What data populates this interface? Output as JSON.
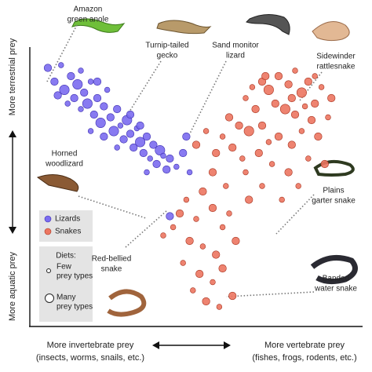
{
  "chart_data": {
    "type": "scatter",
    "xlim": [
      0,
      100
    ],
    "ylim": [
      0,
      100
    ],
    "y_label_top": "More  terrestrial prey",
    "y_label_bottom": "More  aquatic prey",
    "x_label_left": [
      "More invertebrate prey",
      "(insects, worms, snails, etc.)"
    ],
    "x_label_right": [
      "More vertebrate prey",
      "(fishes, frogs, rodents, etc.)"
    ],
    "diets": {
      "title": "Diets:",
      "few": [
        "Few",
        "prey types"
      ],
      "many": [
        "Many",
        "prey types"
      ]
    },
    "annotations": [
      {
        "lines": [
          "Amazon",
          "green anole"
        ]
      },
      {
        "lines": [
          "Turnip-tailed",
          "gecko"
        ]
      },
      {
        "lines": [
          "Sand monitor",
          "lizard"
        ]
      },
      {
        "lines": [
          "Sidewinder",
          "rattlesnake"
        ]
      },
      {
        "lines": [
          "Horned",
          "woodlizard"
        ]
      },
      {
        "lines": [
          "Plains",
          "garter snake"
        ]
      },
      {
        "lines": [
          "Red-bellied",
          "snake"
        ]
      },
      {
        "lines": [
          "Banded",
          "water snake"
        ]
      }
    ],
    "series": [
      {
        "name": "Lizards",
        "color": "#7b6cf0",
        "stroke": "#3d2fb0",
        "x": [
          5,
          7,
          9,
          10,
          12,
          13,
          14,
          15,
          16,
          17,
          18,
          19,
          20,
          21,
          22,
          23,
          24,
          25,
          26,
          27,
          28,
          29,
          30,
          31,
          32,
          33,
          34,
          35,
          36,
          37,
          38,
          39,
          40,
          41,
          42,
          44,
          46,
          48,
          11,
          8,
          20,
          26,
          30,
          35,
          42,
          47,
          15,
          22,
          33,
          18
        ],
        "values": [
          93,
          88,
          94,
          85,
          90,
          82,
          87,
          78,
          84,
          80,
          88,
          76,
          82,
          73,
          79,
          85,
          75,
          70,
          78,
          72,
          67,
          74,
          69,
          64,
          71,
          66,
          62,
          68,
          60,
          65,
          58,
          63,
          61,
          56,
          60,
          57,
          62,
          55,
          80,
          83,
          88,
          64,
          76,
          55,
          39,
          68,
          92,
          68,
          72,
          70
        ],
        "sizes": [
          2,
          2,
          1,
          3,
          2,
          2,
          3,
          1,
          2,
          3,
          1,
          2,
          2,
          3,
          2,
          1,
          2,
          3,
          2,
          1,
          2,
          3,
          2,
          2,
          1,
          3,
          2,
          2,
          1,
          2,
          2,
          3,
          1,
          2,
          2,
          1,
          2,
          1,
          1,
          2,
          2,
          1,
          2,
          1,
          2,
          2,
          1,
          2,
          2,
          1
        ]
      },
      {
        "name": "Snakes",
        "color": "#ec7660",
        "stroke": "#a83420",
        "x": [
          70,
          72,
          75,
          78,
          80,
          82,
          84,
          86,
          88,
          74,
          77,
          80,
          83,
          85,
          68,
          65,
          63,
          66,
          70,
          72,
          75,
          79,
          82,
          87,
          90,
          60,
          58,
          56,
          61,
          64,
          69,
          73,
          78,
          84,
          89,
          53,
          50,
          55,
          59,
          52,
          47,
          45,
          50,
          55,
          58,
          48,
          52,
          56,
          46,
          51,
          55,
          58,
          49,
          53,
          57,
          61,
          60,
          66,
          70,
          40,
          43,
          62,
          65,
          76,
          81,
          71,
          79,
          86,
          67,
          91
        ],
        "values": [
          88,
          85,
          90,
          87,
          92,
          84,
          88,
          80,
          86,
          80,
          78,
          76,
          79,
          74,
          78,
          82,
          72,
          70,
          72,
          66,
          68,
          65,
          70,
          68,
          75,
          75,
          68,
          62,
          64,
          60,
          62,
          58,
          55,
          60,
          58,
          70,
          65,
          55,
          50,
          48,
          45,
          40,
          38,
          42,
          35,
          30,
          28,
          25,
          22,
          18,
          15,
          20,
          12,
          8,
          6,
          10,
          40,
          45,
          50,
          32,
          35,
          30,
          55,
          45,
          50,
          90,
          82,
          90,
          86,
          82
        ],
        "sizes": [
          2,
          3,
          2,
          2,
          1,
          3,
          2,
          2,
          1,
          2,
          3,
          2,
          1,
          2,
          2,
          1,
          2,
          3,
          2,
          1,
          2,
          2,
          1,
          2,
          1,
          2,
          1,
          2,
          2,
          1,
          2,
          1,
          2,
          1,
          2,
          1,
          2,
          2,
          1,
          2,
          1,
          2,
          1,
          2,
          1,
          2,
          1,
          2,
          1,
          2,
          1,
          2,
          1,
          2,
          1,
          2,
          1,
          2,
          1,
          1,
          1,
          2,
          1,
          1,
          1,
          2,
          2,
          1,
          1,
          2
        ]
      }
    ]
  }
}
